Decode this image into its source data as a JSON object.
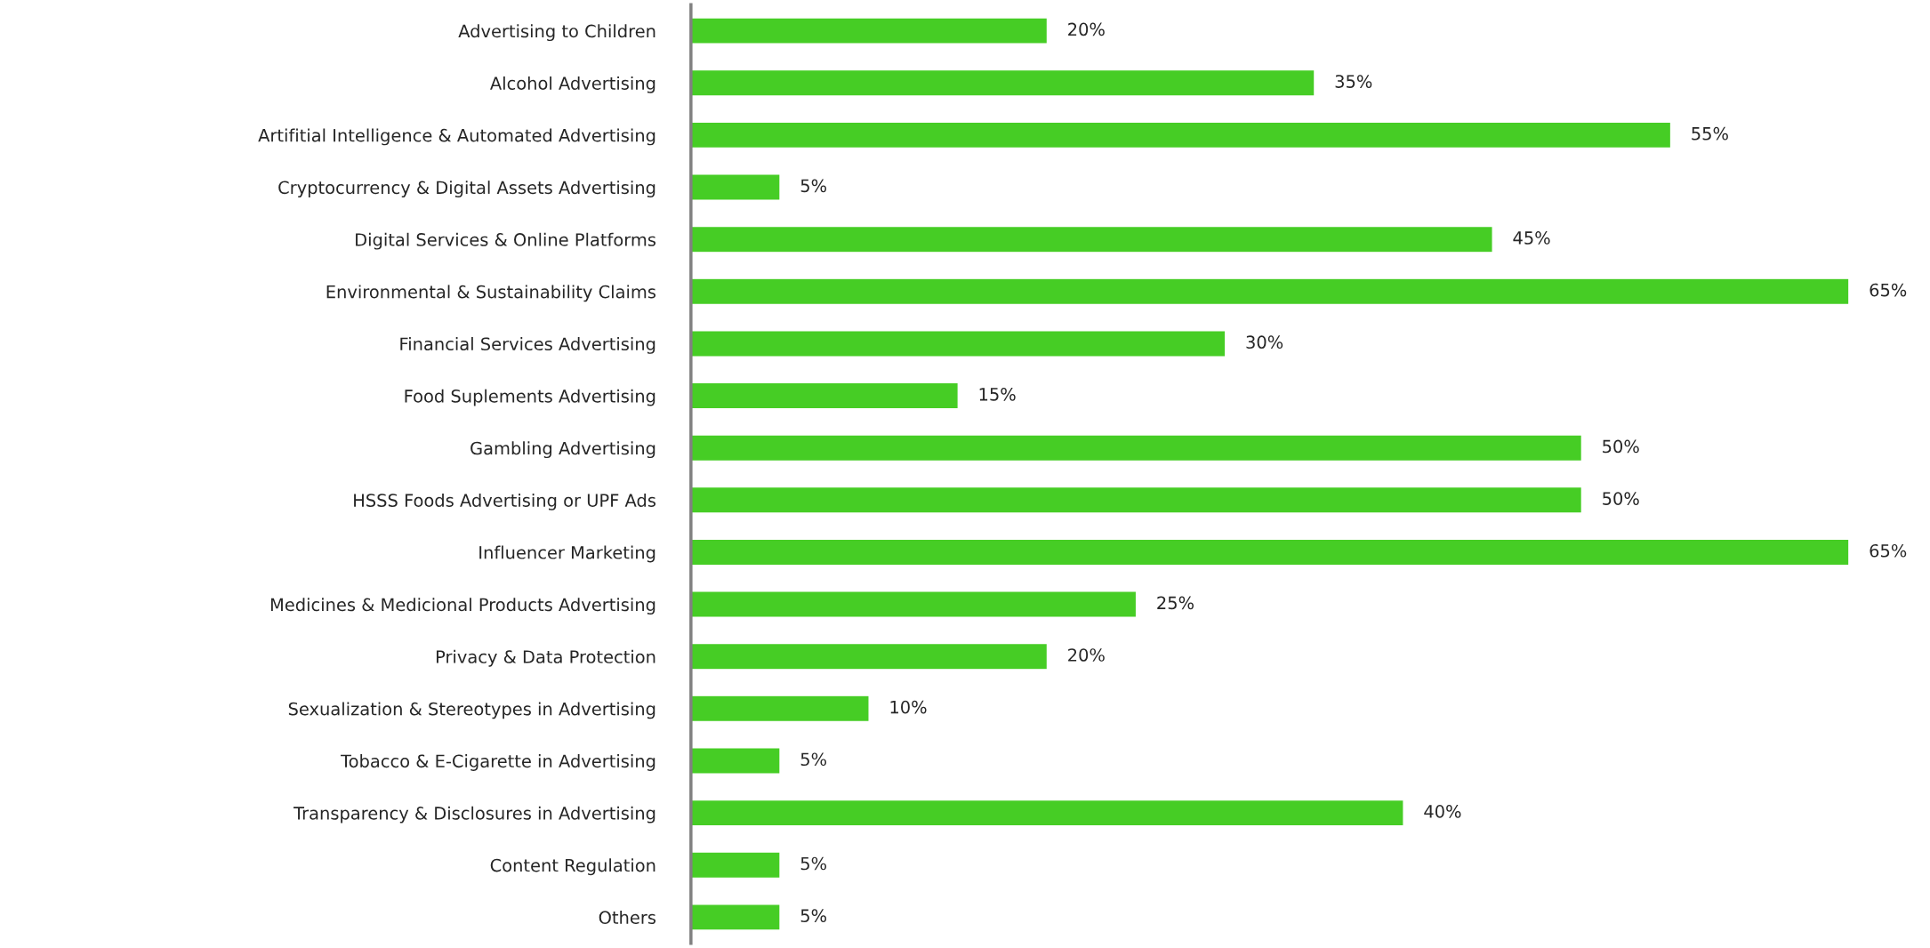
{
  "chart_data": {
    "type": "bar",
    "orientation": "horizontal",
    "categories": [
      "Advertising to Children",
      "Alcohol Advertising",
      "Artifitial Intelligence & Automated Advertising",
      "Cryptocurrency & Digital Assets Advertising",
      "Digital Services & Online Platforms",
      "Environmental & Sustainability Claims",
      "Financial Services Advertising",
      "Food Suplements Advertising",
      "Gambling Advertising",
      "HSSS Foods Advertising or UPF Ads",
      "Influencer Marketing",
      "Medicines & Medicional Products Advertising",
      "Privacy & Data Protection",
      "Sexualization & Stereotypes in Advertising",
      "Tobacco & E-Cigarette in Advertising",
      "Transparency & Disclosures in Advertising",
      "Content Regulation",
      "Others"
    ],
    "values": [
      20,
      35,
      55,
      5,
      45,
      65,
      30,
      15,
      50,
      50,
      65,
      25,
      20,
      10,
      5,
      40,
      5,
      5
    ],
    "value_labels": [
      "20%",
      "35%",
      "55%",
      "5%",
      "45%",
      "65%",
      "30%",
      "15%",
      "50%",
      "50%",
      "65%",
      "25%",
      "20%",
      "10%",
      "5%",
      "40%",
      "5%",
      "5%"
    ],
    "color": "#46cd25",
    "tick_labels": "y",
    "grid": false,
    "legend": false
  }
}
